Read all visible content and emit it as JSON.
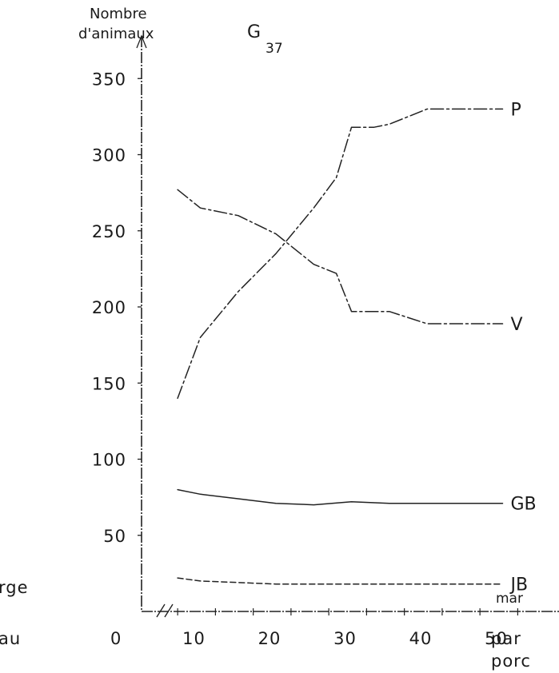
{
  "chart_data": {
    "type": "line",
    "title": "G",
    "title_sub": "37",
    "ylabel": [
      "Nombre",
      "d'animaux"
    ],
    "xlabel": [
      "par",
      "porc"
    ],
    "left_labels": [
      "rge",
      "au"
    ],
    "right_extra_label": "mar",
    "origin_label": "0",
    "xlim": [
      0,
      50
    ],
    "ylim": [
      0,
      350
    ],
    "x_axis_break": true,
    "grid": false,
    "legend": "inline-right",
    "yticks": [
      50,
      100,
      150,
      200,
      250,
      300,
      350
    ],
    "xticks": [
      10,
      20,
      30,
      40,
      50
    ],
    "series": [
      {
        "name": "P",
        "style": "dashdot",
        "x": [
          7,
          10,
          15,
          20,
          25,
          28,
          30,
          33,
          35,
          40,
          45,
          50
        ],
        "y": [
          140,
          180,
          210,
          235,
          265,
          285,
          318,
          318,
          320,
          330,
          330,
          330
        ]
      },
      {
        "name": "V",
        "style": "dashdot",
        "x": [
          7,
          10,
          15,
          20,
          25,
          28,
          30,
          35,
          40,
          45,
          50
        ],
        "y": [
          277,
          265,
          260,
          248,
          228,
          222,
          197,
          197,
          189,
          189,
          189
        ]
      },
      {
        "name": "GB",
        "style": "solid",
        "x": [
          7,
          10,
          15,
          20,
          25,
          30,
          35,
          40,
          45,
          50
        ],
        "y": [
          80,
          77,
          74,
          71,
          70,
          72,
          71,
          71,
          71,
          71
        ]
      },
      {
        "name": "JB",
        "style": "dashed",
        "x": [
          7,
          10,
          15,
          20,
          25,
          30,
          35,
          40,
          45,
          50
        ],
        "y": [
          22,
          20,
          19,
          18,
          18,
          18,
          18,
          18,
          18,
          18
        ]
      }
    ]
  }
}
